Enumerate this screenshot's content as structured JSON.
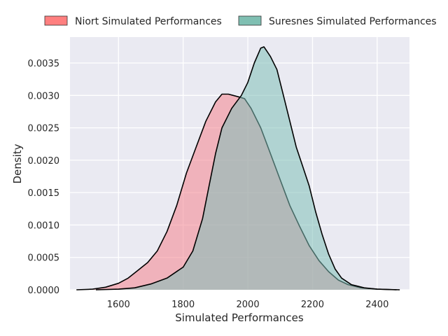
{
  "chart_data": {
    "type": "area",
    "title": "",
    "xlabel": "Simulated Performances",
    "ylabel": "Density",
    "xlim": [
      1450,
      2500
    ],
    "ylim": [
      0,
      0.0039
    ],
    "xticks": [
      1600,
      1800,
      2000,
      2200,
      2400
    ],
    "yticks": [
      0.0,
      0.0005,
      0.001,
      0.0015,
      0.002,
      0.0025,
      0.003,
      0.0035
    ],
    "ytick_labels": [
      "0.0000",
      "0.0005",
      "0.0010",
      "0.0015",
      "0.0020",
      "0.0025",
      "0.0030",
      "0.0035"
    ],
    "grid": true,
    "legend_position": "top-center",
    "series": [
      {
        "name": "Niort Simulated Performances",
        "fill": "#f4838e",
        "legend_color": "#ff7f7f",
        "points": [
          [
            1470,
            0
          ],
          [
            1520,
            1e-05
          ],
          [
            1560,
            4e-05
          ],
          [
            1600,
            0.0001
          ],
          [
            1630,
            0.00018
          ],
          [
            1660,
            0.0003
          ],
          [
            1690,
            0.00042
          ],
          [
            1720,
            0.0006
          ],
          [
            1750,
            0.0009
          ],
          [
            1780,
            0.0013
          ],
          [
            1810,
            0.0018
          ],
          [
            1840,
            0.0022
          ],
          [
            1870,
            0.0026
          ],
          [
            1900,
            0.0029
          ],
          [
            1920,
            0.00302
          ],
          [
            1940,
            0.00302
          ],
          [
            1970,
            0.00298
          ],
          [
            1990,
            0.00295
          ],
          [
            2010,
            0.0028
          ],
          [
            2040,
            0.0025
          ],
          [
            2070,
            0.0021
          ],
          [
            2100,
            0.0017
          ],
          [
            2130,
            0.0013
          ],
          [
            2160,
            0.00098
          ],
          [
            2190,
            0.00068
          ],
          [
            2220,
            0.00045
          ],
          [
            2250,
            0.00028
          ],
          [
            2280,
            0.00015
          ],
          [
            2310,
            8e-05
          ],
          [
            2350,
            3e-05
          ],
          [
            2400,
            1e-05
          ],
          [
            2470,
            0
          ]
        ]
      },
      {
        "name": "Suresnes Simulated Performances",
        "fill": "#7fbfb8",
        "legend_color": "#7fbfb2",
        "points": [
          [
            1530,
            0
          ],
          [
            1600,
            1e-05
          ],
          [
            1650,
            3e-05
          ],
          [
            1700,
            9e-05
          ],
          [
            1750,
            0.00018
          ],
          [
            1800,
            0.00035
          ],
          [
            1830,
            0.0006
          ],
          [
            1860,
            0.0011
          ],
          [
            1880,
            0.0016
          ],
          [
            1900,
            0.0021
          ],
          [
            1920,
            0.0025
          ],
          [
            1950,
            0.0028
          ],
          [
            1980,
            0.003
          ],
          [
            2000,
            0.0032
          ],
          [
            2020,
            0.0035
          ],
          [
            2040,
            0.00373
          ],
          [
            2050,
            0.00375
          ],
          [
            2070,
            0.0036
          ],
          [
            2090,
            0.0034
          ],
          [
            2110,
            0.003
          ],
          [
            2130,
            0.0026
          ],
          [
            2150,
            0.0022
          ],
          [
            2170,
            0.0019
          ],
          [
            2190,
            0.0016
          ],
          [
            2210,
            0.0012
          ],
          [
            2230,
            0.00085
          ],
          [
            2250,
            0.00055
          ],
          [
            2270,
            0.00032
          ],
          [
            2290,
            0.00018
          ],
          [
            2320,
            8e-05
          ],
          [
            2360,
            3e-05
          ],
          [
            2400,
            1e-05
          ],
          [
            2460,
            0
          ]
        ]
      }
    ]
  }
}
